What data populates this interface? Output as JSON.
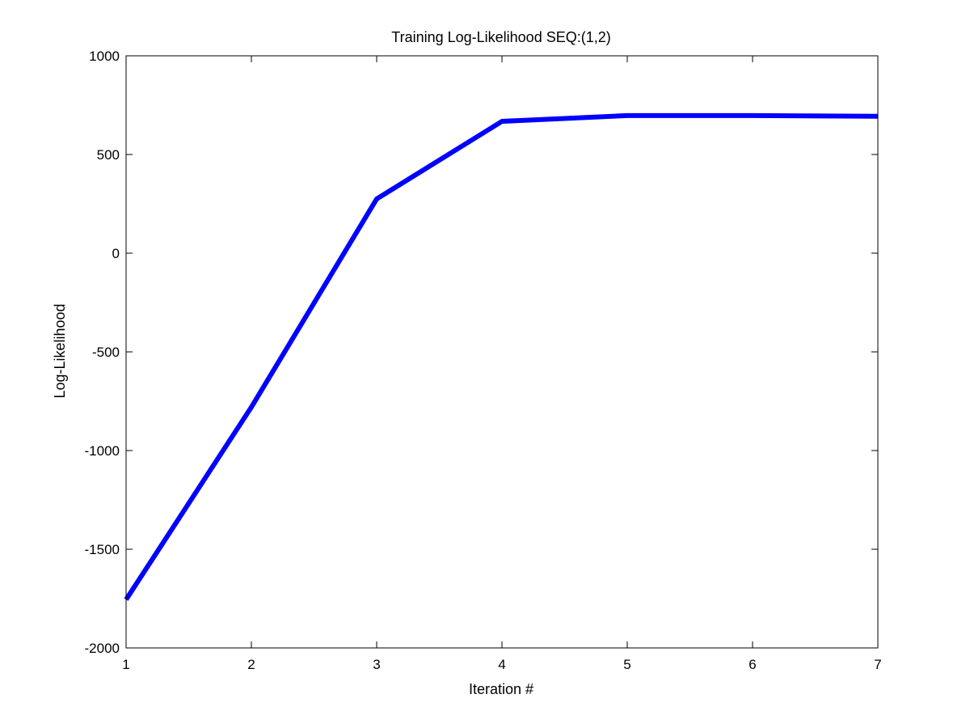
{
  "chart_data": {
    "type": "line",
    "title": "Training Log-Likelihood SEQ:(1,2)",
    "xlabel": "Iteration #",
    "ylabel": "Log-Likelihood",
    "xlim": [
      1,
      7
    ],
    "ylim": [
      -2000,
      1000
    ],
    "xticks": [
      1,
      2,
      3,
      4,
      5,
      6,
      7
    ],
    "yticks": [
      -2000,
      -1500,
      -1000,
      -500,
      0,
      500,
      1000
    ],
    "grid": false,
    "series": [
      {
        "name": "log-likelihood",
        "color": "#0000ff",
        "x": [
          1,
          2,
          3,
          4,
          5,
          6,
          7
        ],
        "y": [
          -1755,
          -780,
          275,
          668,
          697,
          697,
          694
        ]
      }
    ]
  }
}
